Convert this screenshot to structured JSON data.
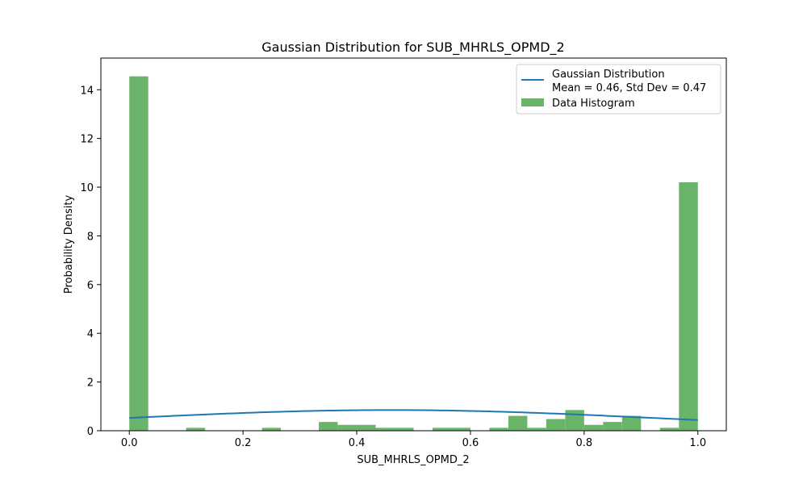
{
  "chart_data": {
    "type": "bar",
    "title": "Gaussian Distribution for SUB_MHRLS_OPMD_2",
    "xlabel": "SUB_MHRLS_OPMD_2",
    "ylabel": "Probability Density",
    "xlim": [
      -0.05,
      1.05
    ],
    "ylim": [
      0,
      15.3
    ],
    "x_ticks": [
      0.0,
      0.2,
      0.4,
      0.6,
      0.8,
      1.0
    ],
    "x_tick_labels": [
      "0.0",
      "0.2",
      "0.4",
      "0.6",
      "0.8",
      "1.0"
    ],
    "y_ticks": [
      0,
      2,
      4,
      6,
      8,
      10,
      12,
      14
    ],
    "y_tick_labels": [
      "0",
      "2",
      "4",
      "6",
      "8",
      "10",
      "12",
      "14"
    ],
    "grid": false,
    "legend_position": "top-right",
    "histogram": {
      "name": "Data Histogram",
      "color": "#6ab46a",
      "bin_width": 0.0333,
      "bins": [
        {
          "x0": 0.0,
          "density": 14.55
        },
        {
          "x0": 0.0333,
          "density": 0
        },
        {
          "x0": 0.0667,
          "density": 0
        },
        {
          "x0": 0.1,
          "density": 0.12
        },
        {
          "x0": 0.1333,
          "density": 0
        },
        {
          "x0": 0.1667,
          "density": 0
        },
        {
          "x0": 0.2,
          "density": 0
        },
        {
          "x0": 0.2333,
          "density": 0.12
        },
        {
          "x0": 0.2667,
          "density": 0
        },
        {
          "x0": 0.3,
          "density": 0
        },
        {
          "x0": 0.3333,
          "density": 0.36
        },
        {
          "x0": 0.3667,
          "density": 0.24
        },
        {
          "x0": 0.4,
          "density": 0.24
        },
        {
          "x0": 0.4333,
          "density": 0.12
        },
        {
          "x0": 0.4667,
          "density": 0.12
        },
        {
          "x0": 0.5,
          "density": 0
        },
        {
          "x0": 0.5333,
          "density": 0.12
        },
        {
          "x0": 0.5667,
          "density": 0.12
        },
        {
          "x0": 0.6,
          "density": 0
        },
        {
          "x0": 0.6333,
          "density": 0.12
        },
        {
          "x0": 0.6667,
          "density": 0.61
        },
        {
          "x0": 0.7,
          "density": 0.12
        },
        {
          "x0": 0.7333,
          "density": 0.48
        },
        {
          "x0": 0.7667,
          "density": 0.85
        },
        {
          "x0": 0.8,
          "density": 0.24
        },
        {
          "x0": 0.8333,
          "density": 0.36
        },
        {
          "x0": 0.8667,
          "density": 0.61
        },
        {
          "x0": 0.9,
          "density": 0
        },
        {
          "x0": 0.9333,
          "density": 0.12
        },
        {
          "x0": 0.9667,
          "density": 10.2
        }
      ]
    },
    "gaussian": {
      "name_line1": "Gaussian Distribution",
      "name_line2": "Mean = 0.46, Std Dev = 0.47",
      "mean": 0.46,
      "std": 0.47,
      "x_range": [
        0.0,
        1.0
      ],
      "color": "#1f77b4"
    }
  }
}
